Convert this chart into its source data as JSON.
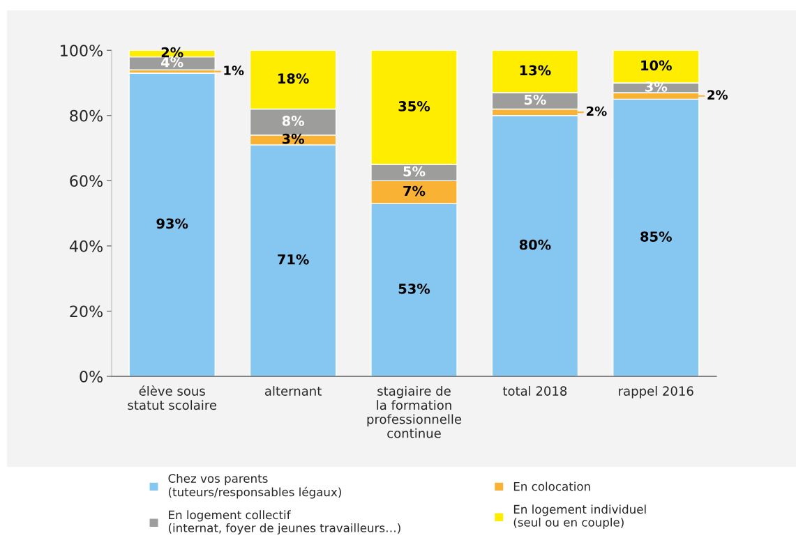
{
  "chart_data": {
    "type": "bar",
    "stacked": true,
    "categories": [
      "élève sous\nstatut scolaire",
      "alternant",
      "stagiaire de\nla formation\nprofessionnelle\ncontinue",
      "total 2018",
      "rappel 2016"
    ],
    "series": [
      {
        "name": "Chez vos parents\n(tuteurs/responsables légaux)",
        "color": "#85c7f0",
        "values": [
          93,
          71,
          53,
          80,
          85
        ],
        "value_labels": [
          "93%",
          "71%",
          "53%",
          "80%",
          "85%"
        ]
      },
      {
        "name": "En colocation",
        "color": "#f9b233",
        "values": [
          1,
          3,
          7,
          2,
          2
        ],
        "value_labels": [
          "1%",
          "3%",
          "7%",
          "2%",
          "2%"
        ]
      },
      {
        "name": "En logement collectif\n(internat, foyer de jeunes travailleurs…)",
        "color": "#9d9d9c",
        "values": [
          4,
          8,
          5,
          5,
          3
        ],
        "value_labels": [
          "4%",
          "8%",
          "5%",
          "5%",
          "3%"
        ]
      },
      {
        "name": "En logement individuel\n(seul ou en couple)",
        "color": "#ffed00",
        "values": [
          2,
          18,
          35,
          13,
          10
        ],
        "value_labels": [
          "2%",
          "18%",
          "35%",
          "13%",
          "10%"
        ]
      }
    ],
    "ylim": [
      0,
      100
    ],
    "yticks": [
      {
        "value": 0,
        "label": "0%"
      },
      {
        "value": 20,
        "label": "20%"
      },
      {
        "value": 40,
        "label": "40%"
      },
      {
        "value": 60,
        "label": "60%"
      },
      {
        "value": 80,
        "label": "80%"
      },
      {
        "value": 100,
        "label": "100%"
      }
    ],
    "grid": false,
    "legend": "bottom"
  }
}
